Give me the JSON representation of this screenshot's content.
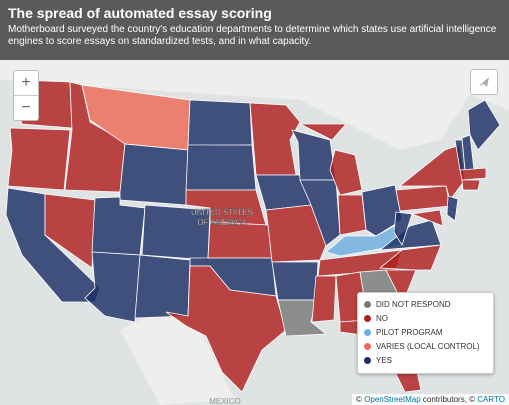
{
  "header": {
    "title": "The spread of automated essay scoring",
    "subtitle": "Motherboard surveyed the country's education departments to determine which states use artificial intelligence engines to score essays on standardized tests, and in what capacity."
  },
  "controls": {
    "zoom_in": "+",
    "zoom_out": "−"
  },
  "map_labels": {
    "country_line1": "UNITED STATES",
    "country_line2": "OF AMERICA",
    "mexico": "MEXICO"
  },
  "legend": [
    {
      "label": "DID NOT RESPOND",
      "color": "#7a7a7a"
    },
    {
      "label": "NO",
      "color": "#b0201f"
    },
    {
      "label": "PILOT PROGRAM",
      "color": "#6faee3"
    },
    {
      "label": "VARIES (LOCAL CONTROL)",
      "color": "#ee6a58"
    },
    {
      "label": "YES",
      "color": "#1c2f66"
    }
  ],
  "attribution": [
    "©",
    "OpenStreetMap",
    "contributors, ©",
    "CARTO"
  ]
}
